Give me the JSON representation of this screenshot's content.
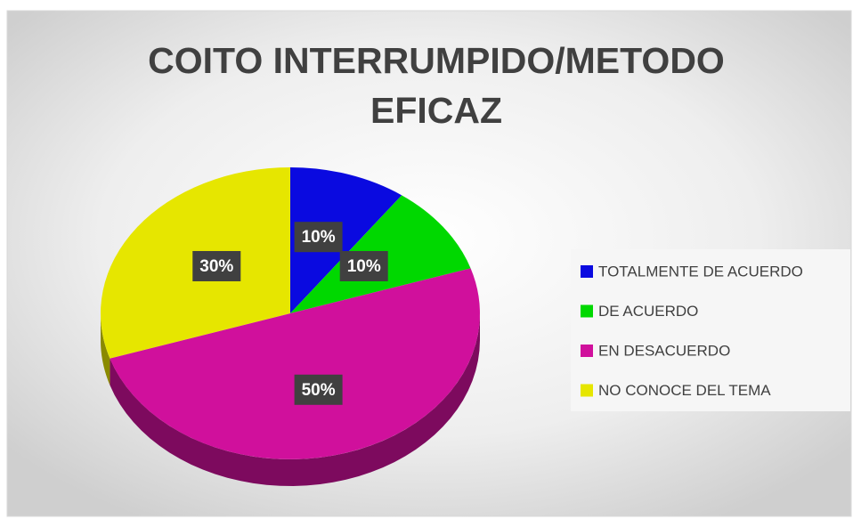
{
  "chart_data": {
    "type": "pie",
    "title": "COITO INTERRUMPIDO/METODO EFICAZ",
    "categories": [
      "TOTALMENTE DE ACUERDO",
      "DE ACUERDO",
      "EN DESACUERDO",
      "NO CONOCE DEL TEMA"
    ],
    "values": [
      10,
      10,
      50,
      30
    ],
    "value_labels": [
      "10%",
      "10%",
      "50%",
      "30%"
    ],
    "colors": [
      "#0a0ae0",
      "#00d800",
      "#d0109c",
      "#e6e600"
    ],
    "legend": "right"
  }
}
